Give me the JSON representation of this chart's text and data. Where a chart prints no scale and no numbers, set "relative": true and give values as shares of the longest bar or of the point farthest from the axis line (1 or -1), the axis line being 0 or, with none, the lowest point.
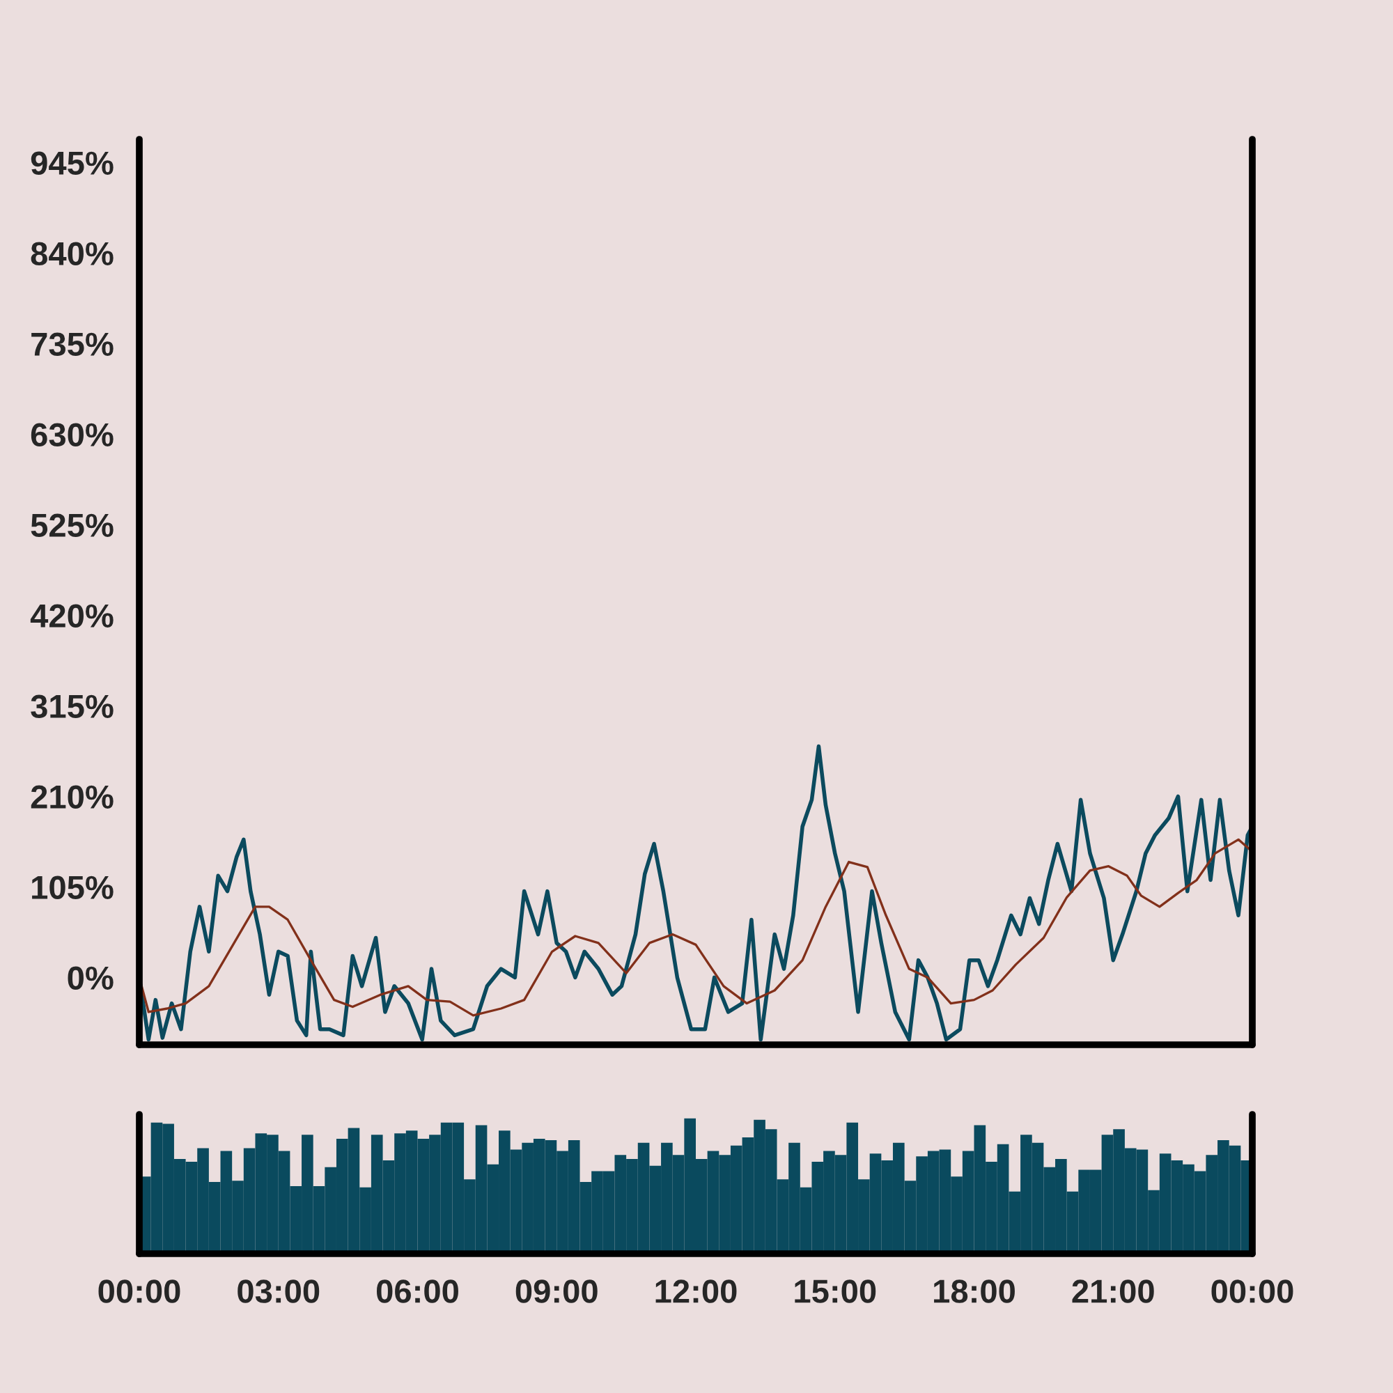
{
  "chart_data": [
    {
      "type": "line",
      "xlim": [
        0,
        24
      ],
      "ylim": [
        -78,
        972
      ],
      "tick_labels": "y",
      "grid": false,
      "yticks": [
        {
          "value": 0,
          "label": "0%"
        },
        {
          "value": 105,
          "label": "105%"
        },
        {
          "value": 210,
          "label": "210%"
        },
        {
          "value": 315,
          "label": "315%"
        },
        {
          "value": 420,
          "label": "420%"
        },
        {
          "value": 525,
          "label": "525%"
        },
        {
          "value": 630,
          "label": "630%"
        },
        {
          "value": 735,
          "label": "735%"
        },
        {
          "value": 840,
          "label": "840%"
        },
        {
          "value": 945,
          "label": "945%"
        }
      ],
      "series": [
        {
          "color": "#0b4a5e",
          "x": [
            0,
            0.2,
            0.35,
            0.5,
            0.7,
            0.9,
            1.1,
            1.3,
            1.5,
            1.7,
            1.9,
            2.1,
            2.25,
            2.4,
            2.6,
            2.8,
            3.0,
            3.2,
            3.4,
            3.6,
            3.7,
            3.9,
            4.1,
            4.4,
            4.6,
            4.8,
            5.1,
            5.3,
            5.5,
            5.8,
            6.1,
            6.3,
            6.5,
            6.8,
            7.2,
            7.5,
            7.8,
            8.1,
            8.3,
            8.6,
            8.8,
            9.0,
            9.2,
            9.4,
            9.6,
            9.9,
            10.2,
            10.4,
            10.7,
            10.9,
            11.1,
            11.3,
            11.6,
            11.9,
            12.2,
            12.4,
            12.7,
            13.0,
            13.2,
            13.4,
            13.7,
            13.9,
            14.1,
            14.3,
            14.5,
            14.65,
            14.8,
            15.0,
            15.2,
            15.5,
            15.8,
            16.0,
            16.3,
            16.6,
            16.8,
            17.0,
            17.2,
            17.4,
            17.7,
            17.9,
            18.1,
            18.3,
            18.5,
            18.8,
            19.0,
            19.2,
            19.4,
            19.6,
            19.8,
            20.1,
            20.3,
            20.5,
            20.8,
            21.0,
            21.2,
            21.5,
            21.7,
            21.9,
            22.2,
            22.4,
            22.6,
            22.9,
            23.1,
            23.3,
            23.5,
            23.7,
            23.9,
            24.0
          ],
          "values": [
            0,
            -72,
            -26,
            -70,
            -30,
            -60,
            30,
            82,
            30,
            118,
            100,
            140,
            160,
            100,
            50,
            -20,
            30,
            25,
            -50,
            -67,
            30,
            -60,
            -60,
            -67,
            25,
            -10,
            46,
            -40,
            -10,
            -30,
            -72,
            10,
            -50,
            -67,
            -60,
            -10,
            10,
            0,
            100,
            50,
            100,
            40,
            30,
            0,
            30,
            10,
            -20,
            -10,
            50,
            120,
            155,
            100,
            0,
            -60,
            -60,
            0,
            -40,
            -30,
            67,
            -72,
            50,
            10,
            72,
            175,
            206,
            268,
            200,
            144,
            100,
            -40,
            100,
            40,
            -40,
            -72,
            20,
            0,
            -30,
            -72,
            -60,
            20,
            20,
            -10,
            20,
            72,
            50,
            92,
            62,
            113,
            155,
            100,
            206,
            144,
            92,
            20,
            50,
            100,
            144,
            165,
            185,
            210,
            100,
            206,
            113,
            206,
            124,
            72,
            165,
            175
          ]
        },
        {
          "color": "#82301a",
          "x": [
            0,
            0.2,
            0.6,
            1.0,
            1.5,
            2.0,
            2.5,
            2.8,
            3.2,
            3.7,
            4.2,
            4.6,
            5.2,
            5.8,
            6.2,
            6.7,
            7.2,
            7.8,
            8.3,
            8.9,
            9.4,
            9.9,
            10.5,
            11.0,
            11.5,
            12.0,
            12.6,
            13.1,
            13.7,
            14.3,
            14.8,
            15.3,
            15.7,
            16.1,
            16.6,
            17.0,
            17.5,
            18.0,
            18.4,
            18.9,
            19.5,
            20.0,
            20.5,
            20.9,
            21.3,
            21.6,
            22.0,
            22.4,
            22.8,
            23.2,
            23.7,
            24.0
          ],
          "values": [
            0,
            -40,
            -36,
            -30,
            -10,
            36,
            82,
            82,
            67,
            20,
            -26,
            -34,
            -20,
            -10,
            -26,
            -28,
            -44,
            -36,
            -26,
            30,
            48,
            40,
            5,
            40,
            50,
            38,
            -10,
            -30,
            -15,
            20,
            82,
            134,
            128,
            72,
            10,
            0,
            -30,
            -26,
            -15,
            15,
            46,
            93,
            124,
            129,
            118,
            95,
            82,
            98,
            113,
            144,
            160,
            146
          ]
        }
      ]
    },
    {
      "type": "bar",
      "relative": true,
      "color": "#0a4a5e",
      "xlim": [
        0,
        24
      ],
      "tick_labels": "x",
      "xticks": [
        {
          "value": 0,
          "label": "00:00"
        },
        {
          "value": 3,
          "label": "03:00"
        },
        {
          "value": 6,
          "label": "06:00"
        },
        {
          "value": 9,
          "label": "09:00"
        },
        {
          "value": 12,
          "label": "12:00"
        },
        {
          "value": 15,
          "label": "15:00"
        },
        {
          "value": 18,
          "label": "18:00"
        },
        {
          "value": 21,
          "label": "21:00"
        },
        {
          "value": 24,
          "label": "00:00"
        }
      ],
      "x": [
        0.125,
        0.375,
        0.625,
        0.875,
        1.125,
        1.375,
        1.625,
        1.875,
        2.125,
        2.375,
        2.625,
        2.875,
        3.125,
        3.375,
        3.625,
        3.875,
        4.125,
        4.375,
        4.625,
        4.875,
        5.125,
        5.375,
        5.625,
        5.875,
        6.125,
        6.375,
        6.625,
        6.875,
        7.125,
        7.375,
        7.625,
        7.875,
        8.125,
        8.375,
        8.625,
        8.875,
        9.125,
        9.375,
        9.625,
        9.875,
        10.125,
        10.375,
        10.625,
        10.875,
        11.125,
        11.375,
        11.625,
        11.875,
        12.125,
        12.375,
        12.625,
        12.875,
        13.125,
        13.375,
        13.625,
        13.875,
        14.125,
        14.375,
        14.625,
        14.875,
        15.125,
        15.375,
        15.625,
        15.875,
        16.125,
        16.375,
        16.625,
        16.875,
        17.125,
        17.375,
        17.625,
        17.875,
        18.125,
        18.375,
        18.625,
        18.875,
        19.125,
        19.375,
        19.625,
        19.875,
        20.125,
        20.375,
        20.625,
        20.875,
        21.125,
        21.375,
        21.625,
        21.875,
        22.125,
        22.375,
        22.625,
        22.875,
        23.125,
        23.375,
        23.625,
        23.875
      ],
      "values": [
        0.57,
        0.97,
        0.96,
        0.7,
        0.68,
        0.78,
        0.53,
        0.76,
        0.54,
        0.78,
        0.89,
        0.88,
        0.76,
        0.5,
        0.88,
        0.5,
        0.64,
        0.85,
        0.93,
        0.49,
        0.88,
        0.69,
        0.89,
        0.91,
        0.85,
        0.88,
        0.97,
        0.97,
        0.55,
        0.95,
        0.66,
        0.91,
        0.77,
        0.82,
        0.85,
        0.84,
        0.76,
        0.84,
        0.53,
        0.61,
        0.61,
        0.73,
        0.7,
        0.82,
        0.65,
        0.82,
        0.73,
        1,
        0.7,
        0.76,
        0.73,
        0.8,
        0.86,
        0.99,
        0.92,
        0.55,
        0.82,
        0.49,
        0.68,
        0.76,
        0.73,
        0.97,
        0.55,
        0.74,
        0.69,
        0.82,
        0.54,
        0.72,
        0.76,
        0.77,
        0.57,
        0.76,
        0.95,
        0.68,
        0.81,
        0.46,
        0.88,
        0.82,
        0.64,
        0.7,
        0.46,
        0.62,
        0.62,
        0.88,
        0.92,
        0.78,
        0.77,
        0.47,
        0.74,
        0.69,
        0.66,
        0.61,
        0.73,
        0.84,
        0.8,
        0.69
      ]
    }
  ]
}
